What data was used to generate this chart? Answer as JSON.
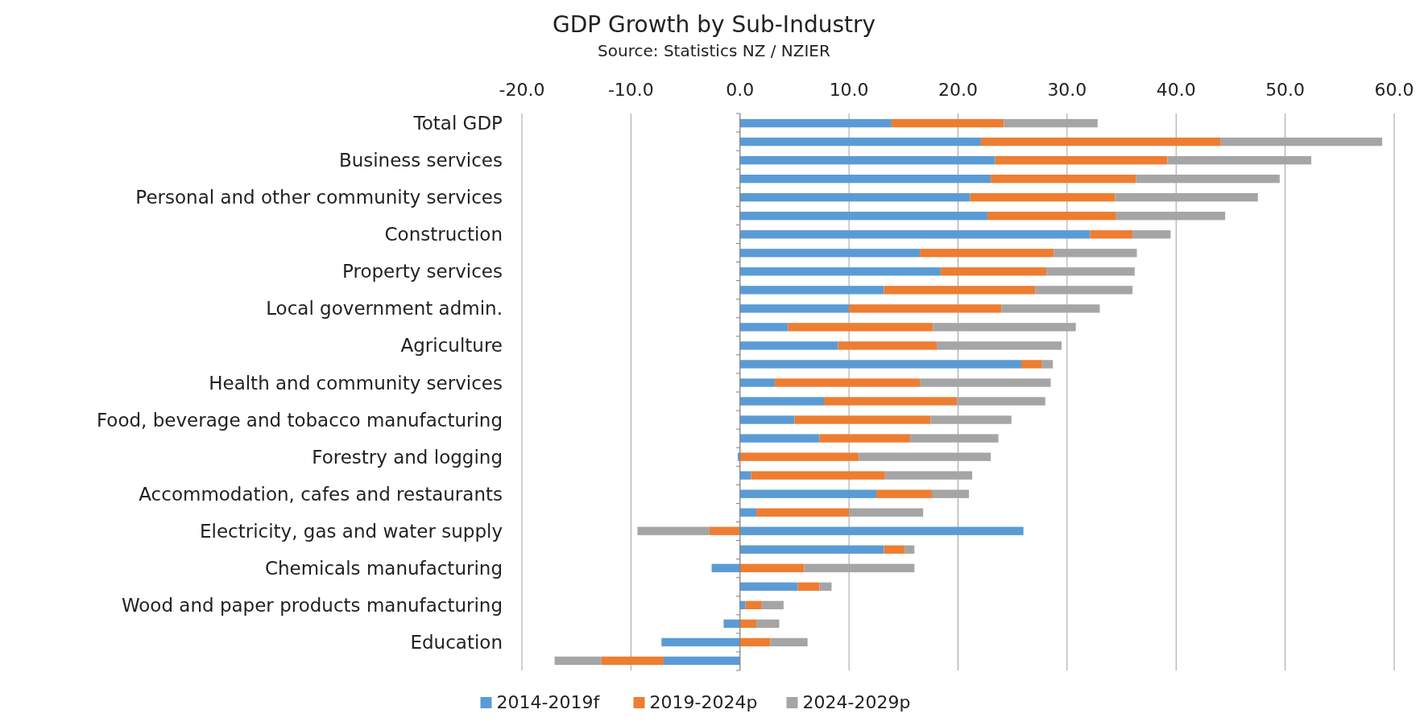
{
  "chart_data": {
    "type": "bar",
    "orientation": "horizontal",
    "stacked": true,
    "title": "GDP Growth by Sub-Industry",
    "subtitle": "Source: Statistics NZ / NZIER",
    "categories": [
      "Total GDP",
      null,
      "Business services",
      null,
      "Personal and other community services",
      null,
      "Construction",
      null,
      "Property services",
      null,
      "Local government admin.",
      null,
      "Agriculture",
      null,
      "Health and community services",
      null,
      "Food, beverage and tobacco manufacturing",
      null,
      "Forestry and logging",
      null,
      "Accommodation, cafes and restaurants",
      null,
      "Electricity, gas and water supply",
      null,
      "Chemicals manufacturing",
      null,
      "Wood and paper products manufacturing",
      null,
      "Education",
      null
    ],
    "series": [
      {
        "name": "2014-2019f",
        "color": "#5b9bd5",
        "values": [
          13.9,
          22.1,
          23.4,
          23.0,
          21.1,
          22.7,
          32.1,
          16.5,
          18.4,
          13.2,
          10.0,
          4.4,
          9.0,
          25.8,
          3.2,
          7.7,
          5.0,
          7.3,
          -0.2,
          1.0,
          12.5,
          1.5,
          26.0,
          13.2,
          -2.6,
          5.3,
          0.5,
          -1.5,
          -7.2,
          -7.0
        ]
      },
      {
        "name": "2019-2024p",
        "color": "#ed7d31",
        "values": [
          10.3,
          22.0,
          15.8,
          13.3,
          13.3,
          11.8,
          3.9,
          12.3,
          9.7,
          13.9,
          14.0,
          13.3,
          9.1,
          1.9,
          13.3,
          12.2,
          12.5,
          8.3,
          10.9,
          12.3,
          5.1,
          8.5,
          -2.8,
          1.9,
          5.9,
          2.0,
          1.5,
          1.5,
          2.8,
          -5.7
        ]
      },
      {
        "name": "2024-2029p",
        "color": "#a5a5a5",
        "values": [
          8.6,
          14.8,
          13.2,
          13.2,
          13.1,
          10.0,
          3.5,
          7.6,
          8.1,
          8.9,
          9.0,
          13.1,
          11.4,
          1.0,
          12.0,
          8.1,
          7.4,
          8.1,
          12.1,
          8.0,
          3.4,
          6.8,
          -6.6,
          0.9,
          10.1,
          1.1,
          2.0,
          2.1,
          3.4,
          -4.3
        ]
      }
    ],
    "xlim": [
      -20,
      60
    ],
    "xticks": [
      {
        "value": -20,
        "label": "-20.0"
      },
      {
        "value": -10,
        "label": "-10.0"
      },
      {
        "value": 0,
        "label": "0.0"
      },
      {
        "value": 10,
        "label": "10.0"
      },
      {
        "value": 20,
        "label": "20.0"
      },
      {
        "value": 30,
        "label": "30.0"
      },
      {
        "value": 40,
        "label": "40.0"
      },
      {
        "value": 50,
        "label": "50.0"
      },
      {
        "value": 60,
        "label": "60.0"
      }
    ],
    "grid": "x",
    "legend": "bottom"
  }
}
